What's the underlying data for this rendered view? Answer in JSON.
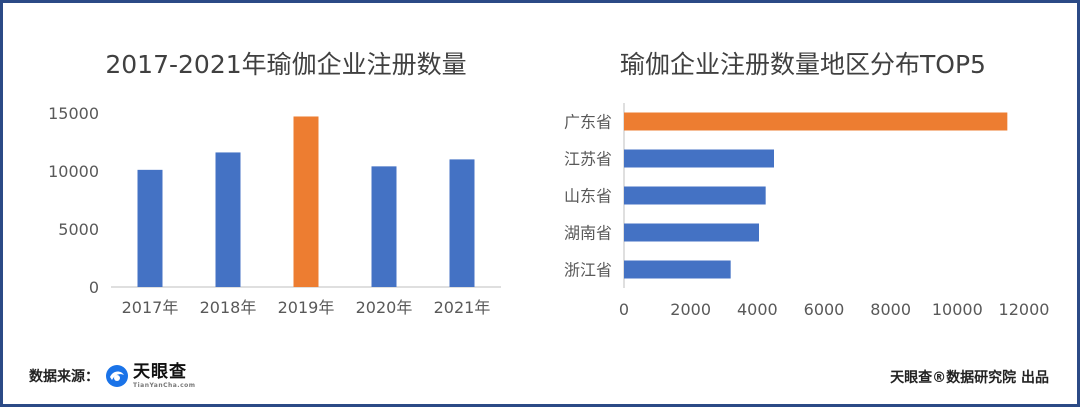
{
  "colors": {
    "bar": "#4472c4",
    "highlight": "#ed7d31",
    "frame": "#2b4a86",
    "grid": "#d9d9d9",
    "axis": "#bfbfbf"
  },
  "footer": {
    "source_label": "数据来源：",
    "logo_name": "天眼查",
    "logo_sub": "TianYanCha.com",
    "logo_icon": "tianyancha-logo-icon",
    "credit": "天眼查®数据研究院 出品"
  },
  "chart_data": [
    {
      "type": "bar",
      "title": "2017-2021年瑜伽企业注册数量",
      "categories": [
        "2017年",
        "2018年",
        "2019年",
        "2020年",
        "2021年"
      ],
      "values": [
        10100,
        11600,
        14700,
        10400,
        11000
      ],
      "highlight_index": 2,
      "ylim": [
        0,
        15000
      ],
      "yticks": [
        0,
        5000,
        10000,
        15000
      ],
      "xlabel": "",
      "ylabel": "",
      "grid": false,
      "legend": "none"
    },
    {
      "type": "bar",
      "orientation": "horizontal",
      "title": "瑜伽企业注册数量地区分布TOP5",
      "categories": [
        "广东省",
        "江苏省",
        "山东省",
        "湖南省",
        "浙江省"
      ],
      "values": [
        11500,
        4500,
        4250,
        4050,
        3200
      ],
      "highlight_index": 0,
      "xlim": [
        0,
        12000
      ],
      "xticks": [
        0,
        2000,
        4000,
        6000,
        8000,
        10000,
        12000
      ],
      "xlabel": "",
      "ylabel": "",
      "grid": false,
      "legend": "none"
    }
  ]
}
